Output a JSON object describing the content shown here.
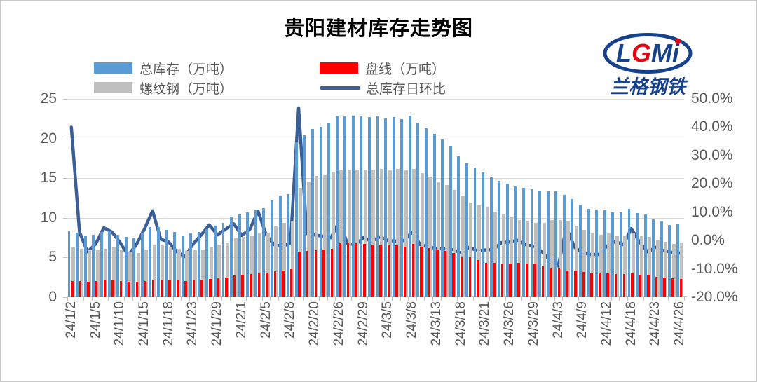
{
  "title": "贵阳建材库存走势图",
  "legend": [
    {
      "label": "总库存（万吨）",
      "color": "#5b9bd5",
      "marker": "bar",
      "col": 0,
      "row": 0
    },
    {
      "label": "盘线（万吨）",
      "color": "#ff0000",
      "marker": "bar",
      "col": 1,
      "row": 0
    },
    {
      "label": "螺纹钢（万吨）",
      "color": "#bfbfbf",
      "marker": "bar",
      "col": 0,
      "row": 1
    },
    {
      "label": "总库存日环比",
      "color": "#3b5e96",
      "marker": "line",
      "col": 1,
      "row": 1
    }
  ],
  "logo": {
    "name": "LGMI",
    "letters": [
      "L",
      "G",
      "M",
      "i"
    ],
    "subtext": "兰格钢铁",
    "blue": "#16418c",
    "red": "#e60012"
  },
  "chart_data": {
    "type": "bar",
    "subtype": "clustered-bar-with-line-overlay",
    "n_points": 76,
    "label_interval": 3,
    "x_labels": [
      "24/1/2",
      "24/1/5",
      "24/1/10",
      "24/1/15",
      "24/1/18",
      "24/1/23",
      "24/1/29",
      "24/2/1",
      "24/2/5",
      "24/2/8",
      "24/2/20",
      "24/2/26",
      "24/2/29",
      "24/3/5",
      "24/3/8",
      "24/3/13",
      "24/3/18",
      "24/3/21",
      "24/3/26",
      "24/3/29",
      "24/4/3",
      "24/4/9",
      "24/4/12",
      "24/4/18",
      "24/4/23",
      "24/4/26"
    ],
    "axes": {
      "left": {
        "min": 0,
        "max": 25,
        "ticks": [
          0,
          5,
          10,
          15,
          20,
          25
        ],
        "tick_labels": [
          "0",
          "5",
          "10",
          "15",
          "20",
          "25"
        ]
      },
      "right": {
        "min": -20,
        "max": 50,
        "ticks": [
          50,
          40,
          30,
          20,
          10,
          0,
          -10,
          -20
        ],
        "tick_labels": [
          "50.0%",
          "40.0%",
          "30.0%",
          "20.0%",
          "10.0%",
          "0.0%",
          "-10.0%",
          "-20.0%"
        ]
      }
    },
    "grid": true,
    "legend_position": "top-left",
    "series": [
      {
        "name": "总库存（万吨）",
        "type": "bar",
        "axis": "left",
        "color": "#5b9bd5",
        "values": [
          8.3,
          8.1,
          7.8,
          7.9,
          8.2,
          8.4,
          7.9,
          7.6,
          7.5,
          8.0,
          8.8,
          8.8,
          8.5,
          8.2,
          7.8,
          8.0,
          8.2,
          8.6,
          9.0,
          9.4,
          10.1,
          10.4,
          10.7,
          11.0,
          11.2,
          12.2,
          12.8,
          13.0,
          19.5,
          20.4,
          21.2,
          21.5,
          21.9,
          22.8,
          22.9,
          22.9,
          22.8,
          22.7,
          22.8,
          22.5,
          22.7,
          22.4,
          22.9,
          22.0,
          21.3,
          20.6,
          19.9,
          19.1,
          17.8,
          16.9,
          16.3,
          15.7,
          15.1,
          14.7,
          14.3,
          14.0,
          13.8,
          13.6,
          13.4,
          13.3,
          13.3,
          12.9,
          12.4,
          11.7,
          11.1,
          11.0,
          11.0,
          10.7,
          10.7,
          11.1,
          10.6,
          10.4,
          9.8,
          9.5,
          9.1,
          9.2
        ]
      },
      {
        "name": "盘线（万吨）",
        "type": "bar",
        "axis": "left",
        "color": "#ff0000",
        "values": [
          2.0,
          2.0,
          1.9,
          2.0,
          2.1,
          2.1,
          2.0,
          1.9,
          1.9,
          2.0,
          2.2,
          2.2,
          2.1,
          2.1,
          2.0,
          2.1,
          2.2,
          2.3,
          2.4,
          2.5,
          2.7,
          2.8,
          2.9,
          3.0,
          3.1,
          3.3,
          3.4,
          3.5,
          5.7,
          5.8,
          5.9,
          6.0,
          6.1,
          6.8,
          6.9,
          6.8,
          6.7,
          6.6,
          6.6,
          6.5,
          6.5,
          6.4,
          6.7,
          6.4,
          6.2,
          6.0,
          5.8,
          5.6,
          5.0,
          5.0,
          4.7,
          4.3,
          4.3,
          4.2,
          4.2,
          4.3,
          4.2,
          4.2,
          4.0,
          3.6,
          3.6,
          3.4,
          3.4,
          3.2,
          3.1,
          3.1,
          3.0,
          2.9,
          2.9,
          3.0,
          2.8,
          2.8,
          2.6,
          2.5,
          2.4,
          2.3
        ]
      },
      {
        "name": "螺纹钢（万吨）",
        "type": "bar",
        "axis": "left",
        "color": "#bfbfbf",
        "values": [
          6.3,
          6.1,
          5.9,
          5.9,
          6.1,
          6.3,
          5.9,
          5.7,
          5.6,
          6.0,
          6.6,
          6.6,
          6.4,
          6.1,
          5.8,
          5.9,
          6.0,
          6.3,
          6.6,
          6.9,
          7.4,
          7.6,
          7.8,
          8.0,
          8.1,
          8.9,
          9.4,
          9.5,
          13.8,
          14.6,
          15.3,
          15.5,
          15.8,
          16.0,
          16.0,
          16.1,
          16.1,
          16.1,
          16.2,
          16.0,
          16.2,
          16.0,
          16.2,
          15.6,
          15.1,
          14.6,
          14.1,
          13.5,
          12.8,
          11.9,
          11.6,
          11.4,
          10.8,
          10.5,
          10.1,
          9.7,
          9.6,
          9.4,
          9.4,
          9.7,
          9.7,
          9.5,
          9.0,
          8.5,
          8.0,
          7.9,
          8.0,
          7.8,
          7.8,
          8.1,
          7.8,
          7.6,
          7.2,
          7.0,
          6.7,
          6.9
        ]
      },
      {
        "name": "总库存日环比",
        "type": "line",
        "axis": "right",
        "color": "#3b5e96",
        "values_pct": [
          40.0,
          3.0,
          -4.0,
          -1.2,
          4.5,
          3.0,
          -0.7,
          -5.2,
          -1.5,
          4.0,
          10.5,
          0.5,
          -0.5,
          -4.0,
          -5.7,
          -1.2,
          2.0,
          5.5,
          2.0,
          4.0,
          5.9,
          1.8,
          4.0,
          10.4,
          2.0,
          -1.5,
          -2.0,
          -1.0,
          46.8,
          2.5,
          2.0,
          1.5,
          1.0,
          6.7,
          -1.0,
          -1.5,
          1.0,
          -0.3,
          1.3,
          0.0,
          -0.2,
          0.0,
          3.0,
          -1.5,
          -2.2,
          -2.8,
          -3.0,
          -3.2,
          -4.4,
          -2.4,
          -3.6,
          -3.3,
          -3.2,
          -0.7,
          -0.5,
          0.1,
          -1.5,
          -2.0,
          -4.0,
          -7.0,
          -9.0,
          4.6,
          -2.4,
          -4.4,
          -4.9,
          -4.9,
          -2.0,
          -0.3,
          -1.5,
          4.2,
          -0.5,
          -4.0,
          -2.4,
          -3.6,
          -4.2,
          -4.5
        ]
      }
    ]
  }
}
